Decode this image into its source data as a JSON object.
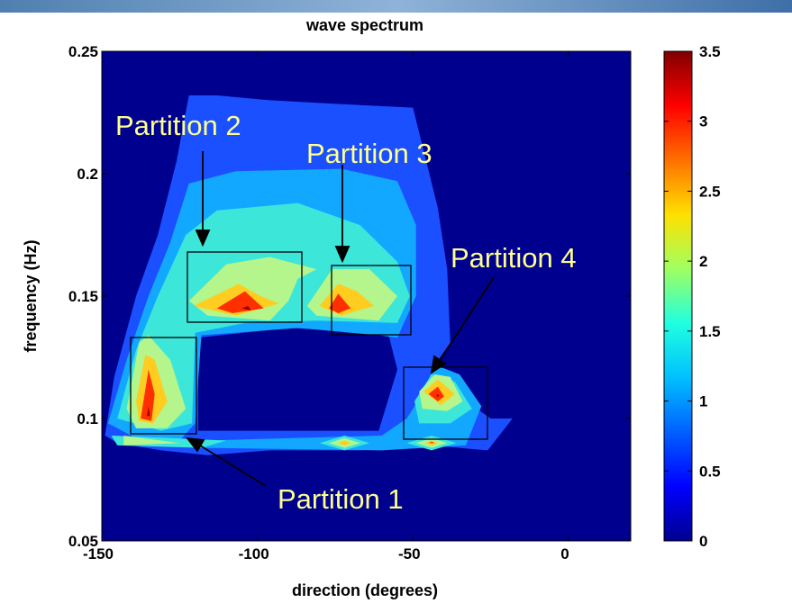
{
  "chart_data": {
    "type": "contour",
    "title": "wave spectrum",
    "x_label": "direction (degrees)",
    "y_label": "frequency (Hz)",
    "xlim": [
      -150,
      20
    ],
    "ylim": [
      0.05,
      0.25
    ],
    "xticks": [
      -150,
      -100,
      -50,
      0
    ],
    "yticks": [
      0.05,
      0.1,
      0.15,
      0.2,
      0.25
    ],
    "clim": [
      0,
      3.5
    ],
    "cticks": [
      0,
      0.5,
      1,
      1.5,
      2,
      2.5,
      3,
      3.5
    ],
    "colormap": [
      "#00008f",
      "#0000ff",
      "#0060ff",
      "#00c0ff",
      "#20ffe0",
      "#a0ff60",
      "#ffe000",
      "#ff7000",
      "#ff0000",
      "#800000"
    ],
    "grid": false,
    "levels": [
      {
        "value": 0.5,
        "color": "#1a50ff",
        "regions": [
          [
            [
              -149,
              0.093
            ],
            [
              -146,
              0.117
            ],
            [
              -139,
              0.15
            ],
            [
              -132,
              0.175
            ],
            [
              -126,
              0.205
            ],
            [
              -122,
              0.232
            ],
            [
              -113,
              0.232
            ],
            [
              -96,
              0.23
            ],
            [
              -67,
              0.228
            ],
            [
              -50,
              0.227
            ],
            [
              -42,
              0.186
            ],
            [
              -39,
              0.161
            ],
            [
              -38,
              0.131
            ],
            [
              -44,
              0.12
            ],
            [
              -35,
              0.109
            ],
            [
              -25,
              0.1
            ],
            [
              -18,
              0.1
            ],
            [
              -26,
              0.087
            ],
            [
              -44,
              0.089
            ],
            [
              -67,
              0.087
            ],
            [
              -96,
              0.087
            ],
            [
              -116,
              0.085
            ],
            [
              -131,
              0.087
            ],
            [
              -145,
              0.09
            ]
          ],
          [
            [
              -119,
              0.133
            ],
            [
              -90,
              0.137
            ],
            [
              -58,
              0.135
            ],
            [
              -55,
              0.12
            ],
            [
              -61,
              0.095
            ],
            [
              -119,
              0.095
            ]
          ]
        ]
      },
      {
        "value": 1,
        "color": "#12a8ff",
        "regions": [
          [
            [
              -148,
              0.098
            ],
            [
              -142,
              0.124
            ],
            [
              -135,
              0.15
            ],
            [
              -128,
              0.172
            ],
            [
              -122,
              0.196
            ],
            [
              -107,
              0.201
            ],
            [
              -73,
              0.202
            ],
            [
              -55,
              0.197
            ],
            [
              -49,
              0.179
            ],
            [
              -49,
              0.15
            ],
            [
              -55,
              0.133
            ],
            [
              -61,
              0.134
            ],
            [
              -87,
              0.137
            ],
            [
              -118,
              0.134
            ],
            [
              -120,
              0.098
            ],
            [
              -125,
              0.091
            ],
            [
              -139,
              0.092
            ]
          ],
          [
            [
              -117,
              0.091
            ],
            [
              -60,
              0.093
            ],
            [
              -52,
              0.1
            ],
            [
              -47,
              0.11
            ],
            [
              -43,
              0.122
            ],
            [
              -35,
              0.118
            ],
            [
              -28,
              0.105
            ],
            [
              -33,
              0.089
            ],
            [
              -60,
              0.087
            ],
            [
              -117,
              0.088
            ]
          ]
        ]
      },
      {
        "value": 1.5,
        "color": "#3ce6d8",
        "regions": [
          [
            [
              -145,
              0.1
            ],
            [
              -139,
              0.128
            ],
            [
              -132,
              0.15
            ],
            [
              -123,
              0.175
            ],
            [
              -113,
              0.185
            ],
            [
              -87,
              0.188
            ],
            [
              -67,
              0.179
            ],
            [
              -55,
              0.164
            ],
            [
              -51,
              0.15
            ],
            [
              -55,
              0.139
            ],
            [
              -81,
              0.14
            ],
            [
              -104,
              0.139
            ],
            [
              -120,
              0.135
            ],
            [
              -121,
              0.098
            ],
            [
              -131,
              0.095
            ]
          ],
          [
            [
              -49.5,
              0.107
            ],
            [
              -44,
              0.118
            ],
            [
              -36.5,
              0.115
            ],
            [
              -31,
              0.104
            ],
            [
              -38,
              0.098
            ],
            [
              -48,
              0.098
            ]
          ],
          [
            [
              -147,
              0.093
            ],
            [
              -110,
              0.091
            ],
            [
              -118,
              0.088
            ],
            [
              -145,
              0.089
            ]
          ],
          [
            [
              -80,
              0.09
            ],
            [
              -72,
              0.093
            ],
            [
              -64,
              0.09
            ],
            [
              -72,
              0.087
            ]
          ],
          [
            [
              -52,
              0.09
            ],
            [
              -44,
              0.093
            ],
            [
              -36,
              0.09
            ],
            [
              -44,
              0.087
            ]
          ]
        ]
      },
      {
        "value": 2,
        "color": "#b4f58c",
        "regions": [
          [
            [
              -142,
              0.104
            ],
            [
              -138,
              0.131
            ],
            [
              -135,
              0.134
            ],
            [
              -128,
              0.124
            ],
            [
              -123,
              0.104
            ],
            [
              -129,
              0.096
            ],
            [
              -139,
              0.096
            ]
          ],
          [
            [
              -122,
              0.148
            ],
            [
              -110,
              0.163
            ],
            [
              -96,
              0.166
            ],
            [
              -81,
              0.161
            ],
            [
              -87,
              0.157
            ],
            [
              -90,
              0.148
            ],
            [
              -96,
              0.14
            ],
            [
              -116,
              0.142
            ]
          ],
          [
            [
              -84,
              0.146
            ],
            [
              -76,
              0.161
            ],
            [
              -64,
              0.161
            ],
            [
              -55,
              0.15
            ],
            [
              -61,
              0.14
            ],
            [
              -81,
              0.142
            ]
          ],
          [
            [
              -48,
              0.111
            ],
            [
              -43,
              0.118
            ],
            [
              -38,
              0.117
            ],
            [
              -34,
              0.107
            ],
            [
              -39,
              0.103
            ],
            [
              -47,
              0.104
            ]
          ],
          [
            [
              -77,
              0.09
            ],
            [
              -72,
              0.092
            ],
            [
              -67,
              0.09
            ],
            [
              -72,
              0.088
            ]
          ],
          [
            [
              -49,
              0.09
            ],
            [
              -44,
              0.092
            ],
            [
              -39,
              0.09
            ],
            [
              -44,
              0.088
            ]
          ],
          [
            [
              -143,
              0.093
            ],
            [
              -125,
              0.09
            ],
            [
              -143,
              0.089
            ]
          ]
        ]
      },
      {
        "value": 2.5,
        "color": "#ffcc20",
        "regions": [
          [
            [
              -139,
              0.107
            ],
            [
              -136,
              0.126
            ],
            [
              -133,
              0.124
            ],
            [
              -129,
              0.107
            ],
            [
              -133.5,
              0.098
            ],
            [
              -138,
              0.099
            ]
          ],
          [
            [
              -120.5,
              0.146
            ],
            [
              -106,
              0.155
            ],
            [
              -99,
              0.15
            ],
            [
              -93,
              0.147
            ],
            [
              -107,
              0.142
            ]
          ],
          [
            [
              -80,
              0.146
            ],
            [
              -74,
              0.155
            ],
            [
              -68,
              0.152
            ],
            [
              -62.5,
              0.146
            ],
            [
              -73,
              0.142
            ]
          ],
          [
            [
              -46.5,
              0.111
            ],
            [
              -42,
              0.116
            ],
            [
              -36.5,
              0.11
            ],
            [
              -41,
              0.1055
            ]
          ],
          [
            [
              -74,
              0.09
            ],
            [
              -72,
              0.091
            ],
            [
              -70,
              0.09
            ],
            [
              -72,
              0.089
            ]
          ],
          [
            [
              -46,
              0.09
            ],
            [
              -44,
              0.091
            ],
            [
              -42,
              0.09
            ],
            [
              -44,
              0.089
            ]
          ]
        ]
      },
      {
        "value": 3,
        "color": "#ff3000",
        "regions": [
          [
            [
              -137.5,
              0.1
            ],
            [
              -135,
              0.12
            ],
            [
              -133,
              0.11
            ],
            [
              -134,
              0.099
            ]
          ],
          [
            [
              -113,
              0.145
            ],
            [
              -104,
              0.152
            ],
            [
              -98,
              0.145
            ],
            [
              -108,
              0.143
            ]
          ],
          [
            [
              -77,
              0.145
            ],
            [
              -74,
              0.151
            ],
            [
              -70,
              0.145
            ],
            [
              -74,
              0.143
            ]
          ],
          [
            [
              -45,
              0.11
            ],
            [
              -42,
              0.113
            ],
            [
              -40,
              0.109
            ],
            [
              -42,
              0.107
            ]
          ],
          [
            [
              -45,
              0.09
            ],
            [
              -44,
              0.0905
            ],
            [
              -43,
              0.09
            ]
          ]
        ]
      },
      {
        "value": 3.3,
        "color": "#a00000",
        "regions": [
          [
            [
              -135.5,
              0.101
            ],
            [
              -135,
              0.105
            ],
            [
              -134.5,
              0.101
            ]
          ],
          [
            [
              -105,
              0.145
            ],
            [
              -103,
              0.146
            ],
            [
              -102,
              0.144
            ]
          ],
          [
            [
              -42.5,
              0.109
            ],
            [
              -42,
              0.11
            ],
            [
              -41.5,
              0.109
            ]
          ]
        ]
      }
    ],
    "annotations": [
      "Partition 1",
      "Partition 2",
      "Partition 3",
      "Partition 4"
    ]
  }
}
